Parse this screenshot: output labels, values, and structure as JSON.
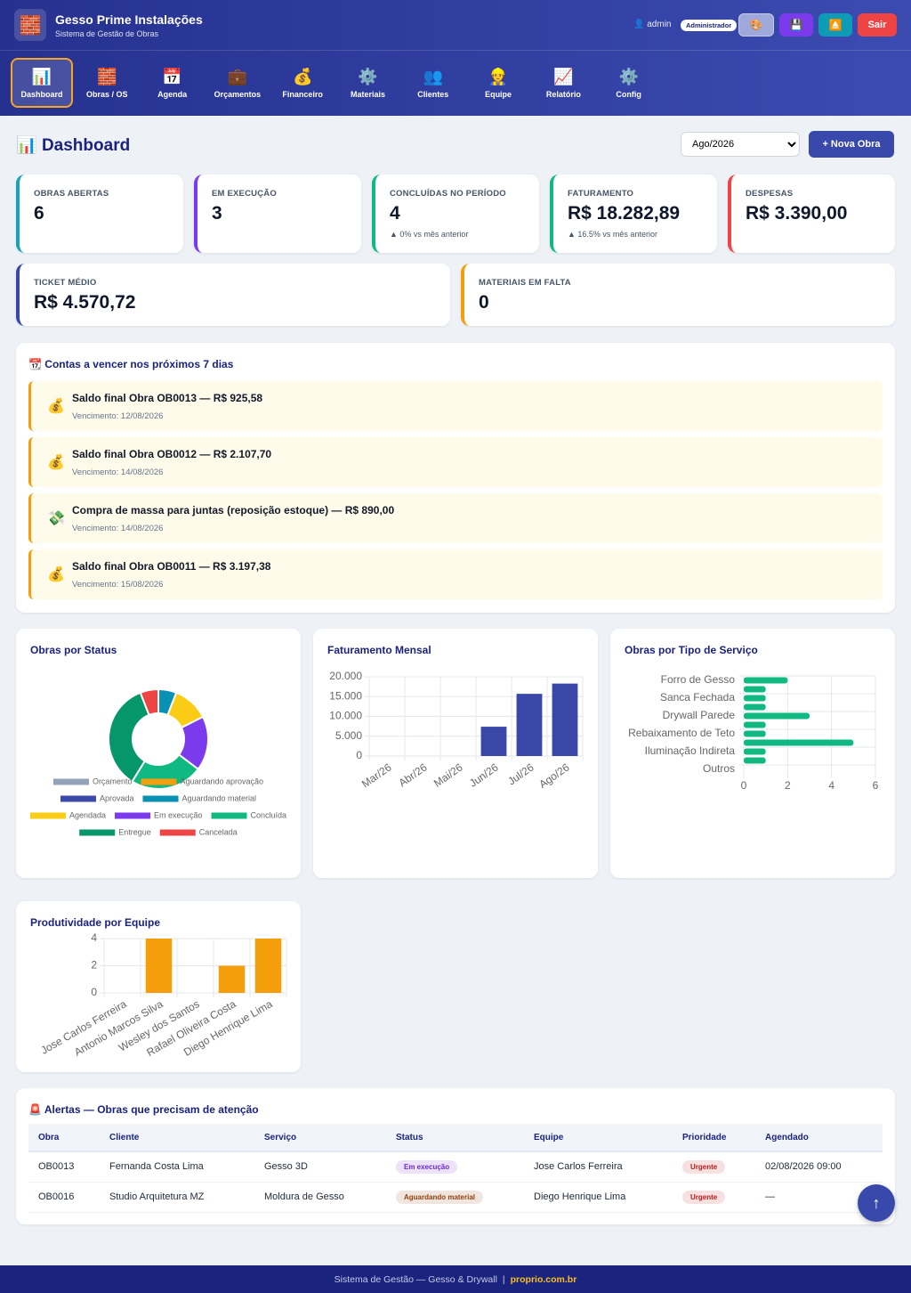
{
  "header": {
    "logo": "🧱",
    "title": "Gesso Prime Instalações",
    "subtitle": "Sistema de Gestão de Obras",
    "user_icon": "👤",
    "user": "admin",
    "role": "Administrador",
    "buttons": [
      "🎨",
      "💾",
      "⏏️"
    ],
    "logout": "Sair"
  },
  "nav": [
    {
      "icon": "📊",
      "label": "Dashboard",
      "active": true
    },
    {
      "icon": "🧱",
      "label": "Obras / OS"
    },
    {
      "icon": "📅",
      "label": "Agenda"
    },
    {
      "icon": "💼",
      "label": "Orçamentos"
    },
    {
      "icon": "💰",
      "label": "Financeiro"
    },
    {
      "icon": "⚙️",
      "label": "Materiais"
    },
    {
      "icon": "👥",
      "label": "Clientes"
    },
    {
      "icon": "👷",
      "label": "Equipe"
    },
    {
      "icon": "📈",
      "label": "Relatório"
    },
    {
      "icon": "⚙️",
      "label": "Config"
    }
  ],
  "page": {
    "icon": "📊",
    "title": "Dashboard",
    "period": "Ago/2026",
    "new_button": "+ Nova Obra"
  },
  "kpis": [
    {
      "label": "OBRAS ABERTAS",
      "value": "6",
      "color": "#17a2b8"
    },
    {
      "label": "EM EXECUÇÃO",
      "value": "3",
      "color": "#7c3aed"
    },
    {
      "label": "CONCLUÍDAS NO PERÍODO",
      "value": "4",
      "trend": "▲ 0% vs mês anterior",
      "color": "#10b981"
    },
    {
      "label": "FATURAMENTO",
      "value": "R$ 18.282,89",
      "trend": "▲ 16.5% vs mês anterior",
      "color": "#10b981"
    },
    {
      "label": "DESPESAS",
      "value": "R$ 3.390,00",
      "color": "#ef4444"
    },
    {
      "label": "TICKET MÉDIO",
      "value": "R$ 4.570,72",
      "color": "#3949ab"
    },
    {
      "label": "MATERIAIS EM FALTA",
      "value": "0",
      "color": "#f59e0b"
    }
  ],
  "bills": {
    "icon": "📆",
    "title": "Contas a vencer nos próximos 7 dias",
    "items": [
      {
        "icon": "💰",
        "text": "Saldo final Obra OB0013 — R$ 925,58",
        "due": "Vencimento: 12/08/2026"
      },
      {
        "icon": "💰",
        "text": "Saldo final Obra OB0012 — R$ 2.107,70",
        "due": "Vencimento: 14/08/2026"
      },
      {
        "icon": "💸",
        "text": "Compra de massa para juntas (reposição estoque) — R$ 890,00",
        "due": "Vencimento: 14/08/2026"
      },
      {
        "icon": "💰",
        "text": "Saldo final Obra OB0011 — R$ 3.197,38",
        "due": "Vencimento: 15/08/2026"
      }
    ]
  },
  "chart_data": [
    {
      "type": "doughnut",
      "title": "Obras por Status",
      "categories": [
        "Orçamento",
        "Aguardando aprovação",
        "Aprovada",
        "Aguardando material",
        "Agendada",
        "Em execução",
        "Concluída",
        "Entregue",
        "Cancelada"
      ],
      "values": [
        0,
        0,
        0,
        1,
        2,
        3,
        4,
        6,
        1
      ],
      "colors": [
        "#94a3b8",
        "#f59e0b",
        "#3b4aa8",
        "#0891b2",
        "#facc15",
        "#7c3aed",
        "#10b981",
        "#059669",
        "#ef4444"
      ]
    },
    {
      "type": "bar",
      "title": "Faturamento Mensal",
      "categories": [
        "Mar/26",
        "Abr/26",
        "Mai/26",
        "Jun/26",
        "Jul/26",
        "Ago/26"
      ],
      "values": [
        0,
        0,
        0,
        7400,
        15700,
        18282.89
      ],
      "color": "#3b47a8",
      "ylim": [
        0,
        20000
      ],
      "yticks": [
        0,
        {
          "value": 5000,
          "label": "5.000"
        },
        {
          "value": 10000,
          "label": "10.000"
        },
        {
          "value": 15000,
          "label": "15.000"
        },
        {
          "value": 20000,
          "label": "20.000"
        }
      ],
      "grid": true
    },
    {
      "type": "hbar",
      "title": "Obras por Tipo de Serviço",
      "categories": [
        "Forro de Gesso",
        null,
        "Sanca Fechada",
        null,
        "Drywall Parede",
        null,
        "Rebaixamento de Teto",
        null,
        "Iluminação Indireta",
        null,
        "Outros"
      ],
      "values": [
        2,
        1,
        1,
        1,
        3,
        1,
        1,
        5,
        1,
        1,
        0
      ],
      "color": "#10b981",
      "xlim": [
        0,
        6
      ],
      "xticks": [
        0,
        2,
        4,
        6
      ],
      "grid": true
    },
    {
      "type": "bar",
      "title": "Produtividade por Equipe",
      "categories": [
        "Jose Carlos Ferreira",
        "Antonio Marcos Silva",
        "Wesley dos Santos",
        "Rafael Oliveira Costa",
        "Diego Henrique Lima"
      ],
      "values": [
        0,
        4,
        0,
        2,
        4
      ],
      "color": "#f59e0b",
      "ylim": [
        0,
        4
      ],
      "yticks": [
        0,
        2,
        4
      ],
      "grid": true
    }
  ],
  "alerts": {
    "icon": "🚨",
    "title": "Alertas — Obras que precisam de atenção",
    "columns": [
      "Obra",
      "Cliente",
      "Serviço",
      "Status",
      "Equipe",
      "Prioridade",
      "Agendado"
    ],
    "rows": [
      [
        "OB0013",
        "Fernanda Costa Lima",
        "Gesso 3D",
        "Em execução",
        "Jose Carlos Ferreira",
        "Urgente",
        "02/08/2026 09:00"
      ],
      [
        "OB0016",
        "Studio Arquitetura MZ",
        "Moldura de Gesso",
        "Aguardando material",
        "Diego Henrique Lima",
        "Urgente",
        "—"
      ]
    ],
    "status_colors": [
      "#6d28d9",
      "#92400e"
    ],
    "priority_color": "#b91c1c"
  },
  "scroll_top": "↑",
  "footer": {
    "text": "Sistema de Gestão — Gesso & Drywall",
    "sep": "|",
    "link": "proprio.com.br"
  }
}
